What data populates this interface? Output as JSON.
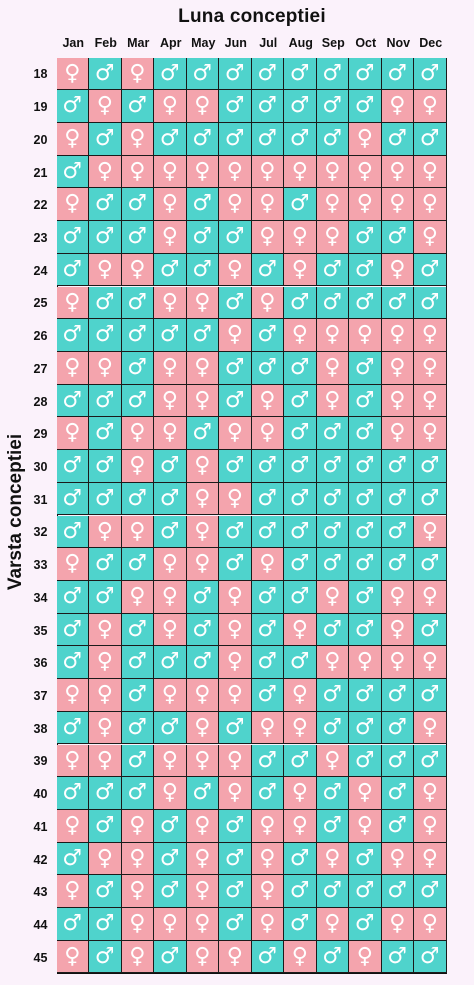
{
  "colors": {
    "boy": "#4fd3cc",
    "girl": "#f4a4ad",
    "background": "#fbf2fb",
    "grid": "#1b1b1b"
  },
  "symbols": {
    "boy": "♂",
    "girl": "♀"
  },
  "chart_data": {
    "type": "table",
    "title": "Luna conceptiei",
    "ylabel": "Varsta conceptiei",
    "columns": [
      "Jan",
      "Feb",
      "Mar",
      "Apr",
      "May",
      "Jun",
      "Jul",
      "Aug",
      "Sep",
      "Oct",
      "Nov",
      "Dec"
    ],
    "rows": [
      {
        "age": "18",
        "cells": [
          "F",
          "M",
          "F",
          "M",
          "M",
          "M",
          "M",
          "M",
          "M",
          "M",
          "M",
          "M"
        ]
      },
      {
        "age": "19",
        "cells": [
          "M",
          "F",
          "M",
          "F",
          "F",
          "M",
          "M",
          "M",
          "M",
          "M",
          "F",
          "F"
        ]
      },
      {
        "age": "20",
        "cells": [
          "F",
          "M",
          "F",
          "M",
          "M",
          "M",
          "M",
          "M",
          "M",
          "F",
          "M",
          "M"
        ]
      },
      {
        "age": "21",
        "cells": [
          "M",
          "F",
          "F",
          "F",
          "F",
          "F",
          "F",
          "F",
          "F",
          "F",
          "F",
          "F"
        ]
      },
      {
        "age": "22",
        "cells": [
          "F",
          "M",
          "M",
          "F",
          "M",
          "F",
          "F",
          "M",
          "F",
          "F",
          "F",
          "F"
        ]
      },
      {
        "age": "23",
        "cells": [
          "M",
          "M",
          "M",
          "F",
          "M",
          "M",
          "F",
          "F",
          "F",
          "M",
          "M",
          "F"
        ]
      },
      {
        "age": "24",
        "cells": [
          "M",
          "F",
          "F",
          "M",
          "M",
          "F",
          "M",
          "F",
          "M",
          "M",
          "F",
          "M"
        ]
      },
      {
        "age": "25",
        "cells": [
          "F",
          "M",
          "M",
          "F",
          "F",
          "M",
          "F",
          "M",
          "M",
          "M",
          "M",
          "M"
        ]
      },
      {
        "age": "26",
        "cells": [
          "M",
          "M",
          "M",
          "M",
          "M",
          "F",
          "M",
          "F",
          "F",
          "F",
          "F",
          "F"
        ]
      },
      {
        "age": "27",
        "cells": [
          "F",
          "F",
          "M",
          "F",
          "F",
          "M",
          "M",
          "M",
          "F",
          "M",
          "F",
          "F"
        ]
      },
      {
        "age": "28",
        "cells": [
          "M",
          "M",
          "M",
          "F",
          "F",
          "M",
          "F",
          "M",
          "F",
          "M",
          "F",
          "F"
        ]
      },
      {
        "age": "29",
        "cells": [
          "F",
          "M",
          "F",
          "F",
          "M",
          "F",
          "F",
          "M",
          "M",
          "M",
          "F",
          "F"
        ]
      },
      {
        "age": "30",
        "cells": [
          "M",
          "M",
          "F",
          "M",
          "F",
          "M",
          "M",
          "M",
          "M",
          "M",
          "M",
          "M"
        ]
      },
      {
        "age": "31",
        "cells": [
          "M",
          "M",
          "M",
          "M",
          "F",
          "F",
          "M",
          "M",
          "M",
          "M",
          "M",
          "M"
        ]
      },
      {
        "age": "32",
        "cells": [
          "M",
          "F",
          "F",
          "M",
          "F",
          "M",
          "M",
          "M",
          "M",
          "M",
          "M",
          "F"
        ]
      },
      {
        "age": "33",
        "cells": [
          "F",
          "M",
          "M",
          "F",
          "F",
          "M",
          "F",
          "M",
          "M",
          "M",
          "M",
          "M"
        ]
      },
      {
        "age": "34",
        "cells": [
          "M",
          "M",
          "F",
          "F",
          "M",
          "F",
          "M",
          "M",
          "F",
          "M",
          "F",
          "F"
        ]
      },
      {
        "age": "35",
        "cells": [
          "M",
          "F",
          "M",
          "F",
          "M",
          "F",
          "M",
          "F",
          "M",
          "M",
          "F",
          "M"
        ]
      },
      {
        "age": "36",
        "cells": [
          "M",
          "F",
          "M",
          "M",
          "M",
          "F",
          "M",
          "M",
          "F",
          "F",
          "F",
          "F"
        ]
      },
      {
        "age": "37",
        "cells": [
          "F",
          "F",
          "M",
          "F",
          "F",
          "F",
          "M",
          "F",
          "M",
          "M",
          "M",
          "M"
        ]
      },
      {
        "age": "38",
        "cells": [
          "M",
          "F",
          "M",
          "M",
          "F",
          "M",
          "F",
          "F",
          "M",
          "M",
          "M",
          "F"
        ]
      },
      {
        "age": "39",
        "cells": [
          "F",
          "F",
          "M",
          "F",
          "F",
          "F",
          "M",
          "M",
          "F",
          "M",
          "M",
          "M"
        ]
      },
      {
        "age": "40",
        "cells": [
          "M",
          "M",
          "M",
          "F",
          "M",
          "F",
          "M",
          "F",
          "M",
          "F",
          "M",
          "F"
        ]
      },
      {
        "age": "41",
        "cells": [
          "F",
          "M",
          "F",
          "M",
          "F",
          "M",
          "F",
          "F",
          "M",
          "F",
          "M",
          "F"
        ]
      },
      {
        "age": "42",
        "cells": [
          "M",
          "F",
          "F",
          "M",
          "F",
          "M",
          "F",
          "M",
          "F",
          "M",
          "F",
          "F"
        ]
      },
      {
        "age": "43",
        "cells": [
          "F",
          "M",
          "F",
          "M",
          "F",
          "M",
          "F",
          "M",
          "M",
          "M",
          "M",
          "M"
        ]
      },
      {
        "age": "44",
        "cells": [
          "M",
          "M",
          "F",
          "F",
          "F",
          "M",
          "F",
          "M",
          "F",
          "M",
          "F",
          "F"
        ]
      },
      {
        "age": "45",
        "cells": [
          "F",
          "M",
          "F",
          "M",
          "F",
          "F",
          "M",
          "F",
          "M",
          "F",
          "M",
          "M"
        ]
      }
    ]
  }
}
